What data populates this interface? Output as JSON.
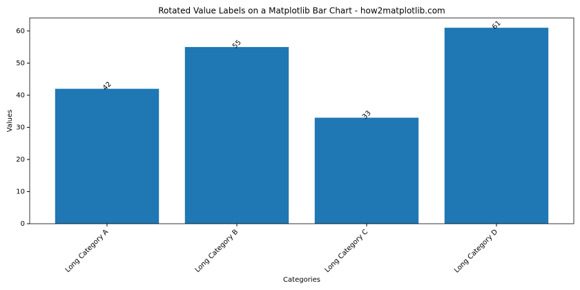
{
  "chart_data": {
    "type": "bar",
    "title": "Rotated Value Labels on a Matplotlib Bar Chart - how2matplotlib.com",
    "x_label": "Categories",
    "y_label": "Values",
    "categories": [
      "Long Category A",
      "Long Category B",
      "Long Category C",
      "Long Category D"
    ],
    "values": [
      42,
      55,
      33,
      61
    ],
    "color": "#1f77b4",
    "ylim": [
      0,
      64.05
    ],
    "yticks": [
      0,
      10,
      20,
      30,
      40,
      50,
      60
    ],
    "grid": false
  }
}
